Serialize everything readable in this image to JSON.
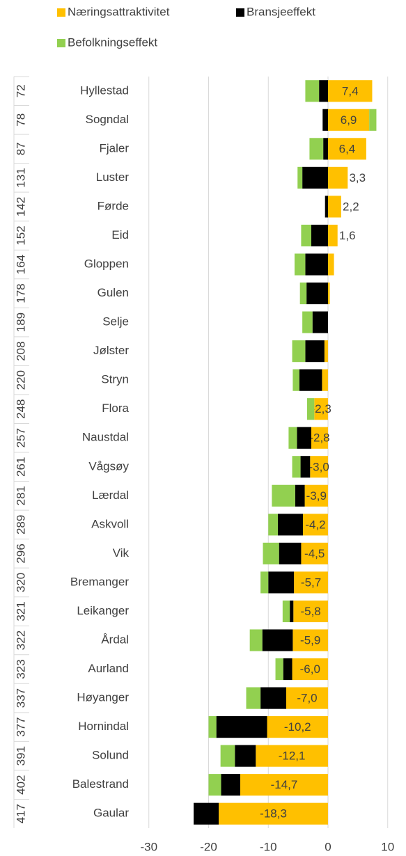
{
  "chart_data": {
    "type": "diverging_stacked_barh",
    "categories": [
      "Hyllestad",
      "Sogndal",
      "Fjaler",
      "Luster",
      "Førde",
      "Eid",
      "Gloppen",
      "Gulen",
      "Selje",
      "Jølster",
      "Stryn",
      "Flora",
      "Naustdal",
      "Vågsøy",
      "Lærdal",
      "Askvoll",
      "Vik",
      "Bremanger",
      "Leikanger",
      "Årdal",
      "Aurland",
      "Høyanger",
      "Hornindal",
      "Solund",
      "Balestrand",
      "Gaular"
    ],
    "groups": [
      "72",
      "78",
      "87",
      "131",
      "142",
      "152",
      "164",
      "178",
      "189",
      "208",
      "220",
      "248",
      "257",
      "261",
      "281",
      "289",
      "296",
      "320",
      "321",
      "322",
      "323",
      "337",
      "377",
      "391",
      "402",
      "417"
    ],
    "series": [
      {
        "name": "Næringsattraktivitet",
        "color": "#ffc000",
        "values": [
          7.4,
          6.9,
          6.4,
          3.3,
          2.2,
          1.6,
          1.0,
          0.3,
          0.0,
          -0.6,
          -1.0,
          -2.3,
          -2.8,
          -3.0,
          -3.9,
          -4.2,
          -4.5,
          -5.7,
          -5.8,
          -5.9,
          -6.0,
          -7.0,
          -10.2,
          -12.1,
          -14.7,
          -18.3
        ],
        "value_labels": [
          "7,4",
          "6,9",
          "6,4",
          "3,3",
          "2,2",
          "1,6",
          null,
          null,
          null,
          null,
          null,
          "-2,3",
          "-2,8",
          "-3,0",
          "-3,9",
          "-4,2",
          "-4,5",
          "-5,7",
          "-5,8",
          "-5,9",
          "-6,0",
          "-7,0",
          "-10,2",
          "-12,1",
          "-14,7",
          "-18,3"
        ]
      },
      {
        "name": "Bransjeeffekt",
        "color": "#000000",
        "values": [
          -1.5,
          -0.9,
          -0.8,
          -4.3,
          -0.5,
          -2.8,
          -3.8,
          -3.6,
          -2.6,
          -3.2,
          -3.8,
          0.0,
          -2.4,
          -1.6,
          -1.6,
          -4.2,
          -3.7,
          -4.3,
          -0.6,
          -5.1,
          -1.5,
          -4.3,
          -8.5,
          -3.5,
          -3.2,
          -4.2
        ]
      },
      {
        "name": "Befolkningseffekt",
        "color": "#92d050",
        "values": [
          -2.3,
          1.2,
          -2.3,
          -0.8,
          0.0,
          -1.7,
          -1.8,
          -1.1,
          -1.7,
          -2.2,
          -1.1,
          -1.2,
          -1.4,
          -1.4,
          -3.9,
          -1.6,
          -2.7,
          -1.3,
          -1.2,
          -2.1,
          -1.3,
          -2.4,
          -1.3,
          -2.4,
          -2.1,
          0.0
        ]
      }
    ],
    "xlim": [
      -30,
      10
    ],
    "xticks": [
      -30,
      -20,
      -10,
      0,
      10
    ],
    "grid": true,
    "legend": "top"
  }
}
